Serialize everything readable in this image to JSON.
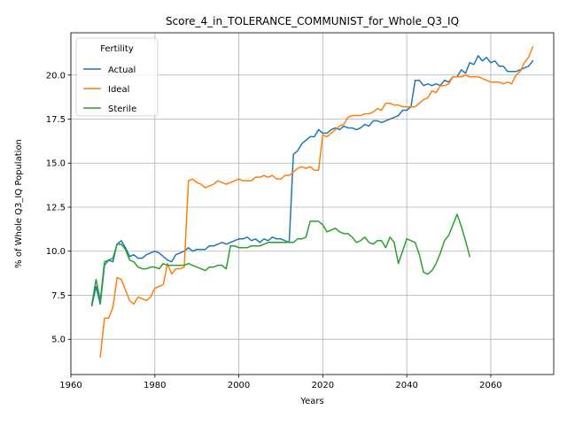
{
  "chart_data": {
    "type": "line",
    "title": "Score_4_in_TOLERANCE_COMMUNIST_for_Whole_Q3_IQ",
    "xlabel": "Years",
    "ylabel": "% of Whole Q3_IQ Population",
    "xlim": [
      1960,
      2075
    ],
    "ylim": [
      3.0,
      22.4
    ],
    "xticks": [
      1960,
      1980,
      2000,
      2020,
      2040,
      2060
    ],
    "xtick_labels": [
      "1960",
      "1980",
      "2000",
      "2020",
      "2040",
      "2060"
    ],
    "yticks": [
      5.0,
      7.5,
      10.0,
      12.5,
      15.0,
      17.5,
      20.0
    ],
    "ytick_labels": [
      "5.0",
      "7.5",
      "10.0",
      "12.5",
      "15.0",
      "17.5",
      "20.0"
    ],
    "grid": true,
    "legend": {
      "title": "Fertility",
      "position": "top-left"
    },
    "series": [
      {
        "name": "Actual",
        "color": "#1f77b4",
        "points": [
          [
            1965,
            6.9
          ],
          [
            1966,
            8.0
          ],
          [
            1967,
            7.0
          ],
          [
            1968,
            9.2
          ],
          [
            1969,
            9.5
          ],
          [
            1970,
            9.4
          ],
          [
            1971,
            10.4
          ],
          [
            1972,
            10.6
          ],
          [
            1973,
            10.2
          ],
          [
            1974,
            9.7
          ],
          [
            1975,
            9.8
          ],
          [
            1976,
            9.6
          ],
          [
            1977,
            9.6
          ],
          [
            1978,
            9.8
          ],
          [
            1979,
            9.9
          ],
          [
            1980,
            10.0
          ],
          [
            1981,
            9.9
          ],
          [
            1982,
            9.7
          ],
          [
            1983,
            9.5
          ],
          [
            1984,
            9.4
          ],
          [
            1985,
            9.8
          ],
          [
            1986,
            9.9
          ],
          [
            1987,
            10.0
          ],
          [
            1988,
            10.2
          ],
          [
            1989,
            10.0
          ],
          [
            1990,
            10.1
          ],
          [
            1991,
            10.1
          ],
          [
            1992,
            10.1
          ],
          [
            1993,
            10.3
          ],
          [
            1994,
            10.3
          ],
          [
            1995,
            10.4
          ],
          [
            1996,
            10.5
          ],
          [
            1997,
            10.4
          ],
          [
            1998,
            10.5
          ],
          [
            1999,
            10.6
          ],
          [
            2000,
            10.7
          ],
          [
            2001,
            10.7
          ],
          [
            2002,
            10.8
          ],
          [
            2003,
            10.6
          ],
          [
            2004,
            10.7
          ],
          [
            2005,
            10.5
          ],
          [
            2006,
            10.7
          ],
          [
            2007,
            10.6
          ],
          [
            2008,
            10.8
          ],
          [
            2009,
            10.7
          ],
          [
            2010,
            10.7
          ],
          [
            2011,
            10.6
          ],
          [
            2012,
            10.5
          ],
          [
            2013,
            15.5
          ],
          [
            2014,
            15.7
          ],
          [
            2015,
            16.1
          ],
          [
            2016,
            16.3
          ],
          [
            2017,
            16.5
          ],
          [
            2018,
            16.5
          ],
          [
            2019,
            16.9
          ],
          [
            2020,
            16.7
          ],
          [
            2021,
            16.7
          ],
          [
            2022,
            16.9
          ],
          [
            2023,
            17.0
          ],
          [
            2024,
            16.9
          ],
          [
            2025,
            17.1
          ],
          [
            2026,
            17.0
          ],
          [
            2027,
            17.0
          ],
          [
            2028,
            16.9
          ],
          [
            2029,
            17.0
          ],
          [
            2030,
            17.2
          ],
          [
            2031,
            17.1
          ],
          [
            2032,
            17.4
          ],
          [
            2033,
            17.4
          ],
          [
            2034,
            17.3
          ],
          [
            2035,
            17.4
          ],
          [
            2036,
            17.5
          ],
          [
            2037,
            17.6
          ],
          [
            2038,
            17.7
          ],
          [
            2039,
            18.0
          ],
          [
            2040,
            18.0
          ],
          [
            2041,
            18.2
          ],
          [
            2042,
            19.7
          ],
          [
            2043,
            19.7
          ],
          [
            2044,
            19.4
          ],
          [
            2045,
            19.5
          ],
          [
            2046,
            19.4
          ],
          [
            2047,
            19.5
          ],
          [
            2048,
            19.4
          ],
          [
            2049,
            19.7
          ],
          [
            2050,
            19.6
          ],
          [
            2051,
            19.9
          ],
          [
            2052,
            19.9
          ],
          [
            2053,
            20.3
          ],
          [
            2054,
            20.1
          ],
          [
            2055,
            20.7
          ],
          [
            2056,
            20.6
          ],
          [
            2057,
            21.1
          ],
          [
            2058,
            20.8
          ],
          [
            2059,
            21.0
          ],
          [
            2060,
            20.7
          ],
          [
            2061,
            20.8
          ],
          [
            2062,
            20.5
          ],
          [
            2063,
            20.5
          ],
          [
            2064,
            20.2
          ],
          [
            2065,
            20.2
          ],
          [
            2066,
            20.2
          ],
          [
            2067,
            20.3
          ],
          [
            2068,
            20.4
          ],
          [
            2069,
            20.5
          ],
          [
            2070,
            20.8
          ]
        ]
      },
      {
        "name": "Ideal",
        "color": "#ff7f0e",
        "points": [
          [
            1967,
            4.0
          ],
          [
            1968,
            6.2
          ],
          [
            1969,
            6.2
          ],
          [
            1970,
            6.8
          ],
          [
            1971,
            8.5
          ],
          [
            1972,
            8.4
          ],
          [
            1973,
            7.8
          ],
          [
            1974,
            7.2
          ],
          [
            1975,
            7.0
          ],
          [
            1976,
            7.4
          ],
          [
            1977,
            7.3
          ],
          [
            1978,
            7.2
          ],
          [
            1979,
            7.4
          ],
          [
            1980,
            7.9
          ],
          [
            1981,
            8.0
          ],
          [
            1982,
            8.1
          ],
          [
            1983,
            9.3
          ],
          [
            1984,
            8.7
          ],
          [
            1985,
            9.0
          ],
          [
            1986,
            9.0
          ],
          [
            1987,
            9.1
          ],
          [
            1988,
            14.0
          ],
          [
            1989,
            14.1
          ],
          [
            1990,
            13.9
          ],
          [
            1991,
            13.8
          ],
          [
            1992,
            13.6
          ],
          [
            1993,
            13.7
          ],
          [
            1994,
            13.8
          ],
          [
            1995,
            14.0
          ],
          [
            1996,
            13.9
          ],
          [
            1997,
            13.8
          ],
          [
            1998,
            13.9
          ],
          [
            1999,
            14.0
          ],
          [
            2000,
            14.1
          ],
          [
            2001,
            14.0
          ],
          [
            2002,
            14.0
          ],
          [
            2003,
            14.0
          ],
          [
            2004,
            14.2
          ],
          [
            2005,
            14.2
          ],
          [
            2006,
            14.3
          ],
          [
            2007,
            14.2
          ],
          [
            2008,
            14.3
          ],
          [
            2009,
            14.1
          ],
          [
            2010,
            14.1
          ],
          [
            2011,
            14.3
          ],
          [
            2012,
            14.3
          ],
          [
            2013,
            14.5
          ],
          [
            2014,
            14.7
          ],
          [
            2015,
            14.8
          ],
          [
            2016,
            14.7
          ],
          [
            2017,
            14.8
          ],
          [
            2018,
            14.6
          ],
          [
            2019,
            14.6
          ],
          [
            2020,
            16.6
          ],
          [
            2021,
            16.5
          ],
          [
            2022,
            16.7
          ],
          [
            2023,
            16.9
          ],
          [
            2024,
            17.1
          ],
          [
            2025,
            17.2
          ],
          [
            2026,
            17.6
          ],
          [
            2027,
            17.7
          ],
          [
            2028,
            17.7
          ],
          [
            2029,
            17.7
          ],
          [
            2030,
            17.8
          ],
          [
            2031,
            17.8
          ],
          [
            2032,
            17.9
          ],
          [
            2033,
            18.1
          ],
          [
            2034,
            18.0
          ],
          [
            2035,
            18.4
          ],
          [
            2036,
            18.4
          ],
          [
            2037,
            18.3
          ],
          [
            2038,
            18.3
          ],
          [
            2039,
            18.2
          ],
          [
            2040,
            18.2
          ],
          [
            2041,
            18.2
          ],
          [
            2042,
            18.2
          ],
          [
            2043,
            18.4
          ],
          [
            2044,
            18.6
          ],
          [
            2045,
            18.7
          ],
          [
            2046,
            19.1
          ],
          [
            2047,
            19.0
          ],
          [
            2048,
            19.4
          ],
          [
            2049,
            19.4
          ],
          [
            2050,
            19.5
          ],
          [
            2051,
            19.9
          ],
          [
            2052,
            19.9
          ],
          [
            2053,
            19.9
          ],
          [
            2054,
            20.0
          ],
          [
            2055,
            19.9
          ],
          [
            2056,
            19.9
          ],
          [
            2057,
            19.9
          ],
          [
            2058,
            19.8
          ],
          [
            2059,
            19.7
          ],
          [
            2060,
            19.6
          ],
          [
            2061,
            19.6
          ],
          [
            2062,
            19.6
          ],
          [
            2063,
            19.5
          ],
          [
            2064,
            19.6
          ],
          [
            2065,
            19.5
          ],
          [
            2066,
            20.0
          ],
          [
            2067,
            20.2
          ],
          [
            2068,
            20.7
          ],
          [
            2069,
            21.0
          ],
          [
            2070,
            21.6
          ]
        ]
      },
      {
        "name": "Sterile",
        "color": "#2ca02c",
        "points": [
          [
            1965,
            7.0
          ],
          [
            1966,
            8.4
          ],
          [
            1967,
            7.2
          ],
          [
            1968,
            9.4
          ],
          [
            1969,
            9.5
          ],
          [
            1970,
            9.6
          ],
          [
            1971,
            10.4
          ],
          [
            1972,
            10.4
          ],
          [
            1973,
            10.1
          ],
          [
            1974,
            9.5
          ],
          [
            1975,
            9.4
          ],
          [
            1976,
            9.1
          ],
          [
            1977,
            9.0
          ],
          [
            1978,
            9.0
          ],
          [
            1979,
            9.1
          ],
          [
            1980,
            9.1
          ],
          [
            1981,
            9.0
          ],
          [
            1982,
            9.3
          ],
          [
            1983,
            9.2
          ],
          [
            1984,
            9.2
          ],
          [
            1985,
            9.2
          ],
          [
            1986,
            9.2
          ],
          [
            1987,
            9.2
          ],
          [
            1988,
            9.3
          ],
          [
            1989,
            9.2
          ],
          [
            1990,
            9.1
          ],
          [
            1991,
            9.0
          ],
          [
            1992,
            8.9
          ],
          [
            1993,
            9.1
          ],
          [
            1994,
            9.1
          ],
          [
            1995,
            9.2
          ],
          [
            1996,
            9.2
          ],
          [
            1997,
            9.0
          ],
          [
            1998,
            10.3
          ],
          [
            1999,
            10.3
          ],
          [
            2000,
            10.2
          ],
          [
            2001,
            10.2
          ],
          [
            2002,
            10.2
          ],
          [
            2003,
            10.3
          ],
          [
            2004,
            10.3
          ],
          [
            2005,
            10.3
          ],
          [
            2006,
            10.4
          ],
          [
            2007,
            10.5
          ],
          [
            2008,
            10.5
          ],
          [
            2009,
            10.5
          ],
          [
            2010,
            10.5
          ],
          [
            2011,
            10.5
          ],
          [
            2012,
            10.5
          ],
          [
            2013,
            10.5
          ],
          [
            2014,
            10.7
          ],
          [
            2015,
            10.7
          ],
          [
            2016,
            10.8
          ],
          [
            2017,
            11.7
          ],
          [
            2018,
            11.7
          ],
          [
            2019,
            11.7
          ],
          [
            2020,
            11.5
          ],
          [
            2021,
            11.1
          ],
          [
            2022,
            11.2
          ],
          [
            2023,
            11.3
          ],
          [
            2024,
            11.1
          ],
          [
            2025,
            11.0
          ],
          [
            2026,
            11.0
          ],
          [
            2027,
            10.8
          ],
          [
            2028,
            10.5
          ],
          [
            2029,
            10.6
          ],
          [
            2030,
            10.8
          ],
          [
            2031,
            10.5
          ],
          [
            2032,
            10.4
          ],
          [
            2033,
            10.6
          ],
          [
            2034,
            10.6
          ],
          [
            2035,
            10.2
          ],
          [
            2036,
            10.8
          ],
          [
            2037,
            10.5
          ],
          [
            2038,
            9.3
          ],
          [
            2039,
            10.0
          ],
          [
            2040,
            10.7
          ],
          [
            2041,
            10.6
          ],
          [
            2042,
            10.5
          ],
          [
            2043,
            9.8
          ],
          [
            2044,
            8.8
          ],
          [
            2045,
            8.7
          ],
          [
            2046,
            8.9
          ],
          [
            2047,
            9.3
          ],
          [
            2048,
            9.9
          ],
          [
            2049,
            10.6
          ],
          [
            2050,
            10.9
          ],
          [
            2051,
            11.5
          ],
          [
            2052,
            12.1
          ],
          [
            2053,
            11.4
          ],
          [
            2054,
            10.6
          ],
          [
            2055,
            9.7
          ]
        ]
      }
    ]
  }
}
